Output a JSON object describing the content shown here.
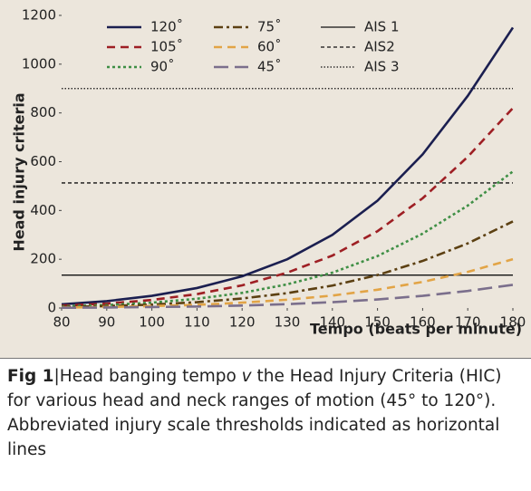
{
  "chart_data": {
    "type": "line",
    "ylabel": "Head injury criteria",
    "xlabel": "Tempo (beats per minute)",
    "x": [
      80,
      90,
      100,
      110,
      120,
      130,
      140,
      150,
      160,
      170,
      180
    ],
    "xlim": [
      80,
      180
    ],
    "xticks": [
      80,
      90,
      100,
      110,
      120,
      130,
      140,
      150,
      160,
      170,
      180
    ],
    "ylim": [
      0,
      1200
    ],
    "yticks": [
      0,
      200,
      400,
      600,
      800,
      1000,
      1200
    ],
    "grid": false,
    "series": [
      {
        "name": "120˚",
        "color": "#1b1f50",
        "style": "solid",
        "values": [
          15,
          28,
          50,
          82,
          130,
          200,
          300,
          440,
          630,
          870,
          1150
        ]
      },
      {
        "name": "105˚",
        "color": "#9e1f24",
        "style": "dashed",
        "values": [
          10,
          18,
          33,
          57,
          93,
          145,
          215,
          315,
          450,
          620,
          820
        ]
      },
      {
        "name": "90˚",
        "color": "#3f8f45",
        "style": "dotted",
        "values": [
          7,
          12,
          22,
          38,
          62,
          97,
          145,
          213,
          305,
          420,
          560
        ]
      },
      {
        "name": "75˚",
        "color": "#5c4012",
        "style": "dashdot",
        "values": [
          4,
          8,
          14,
          24,
          39,
          61,
          92,
          135,
          193,
          265,
          355
        ]
      },
      {
        "name": "60˚",
        "color": "#e2a446",
        "style": "dashed",
        "values": [
          2,
          4,
          8,
          13,
          22,
          34,
          51,
          75,
          107,
          148,
          200
        ]
      },
      {
        "name": "45˚",
        "color": "#7b6f8c",
        "style": "longdash",
        "values": [
          1,
          2,
          4,
          6,
          10,
          16,
          24,
          35,
          50,
          70,
          95
        ]
      }
    ],
    "reference_lines": [
      {
        "name": "AIS 1",
        "value": 135,
        "color": "#111111",
        "style": "solid"
      },
      {
        "name": "AIS2",
        "value": 513,
        "color": "#111111",
        "style": "shortdash"
      },
      {
        "name": "AIS 3",
        "value": 900,
        "color": "#111111",
        "style": "fine"
      }
    ]
  },
  "caption": {
    "label": "Fig 1",
    "separator": "|",
    "text_start": "Head banging tempo ",
    "italic": "v",
    "text_end": " the Head Injury Criteria (HIC) for various head and neck ranges of motion (45° to 120°). Abbreviated injury scale thresholds indicated as horizontal lines"
  }
}
